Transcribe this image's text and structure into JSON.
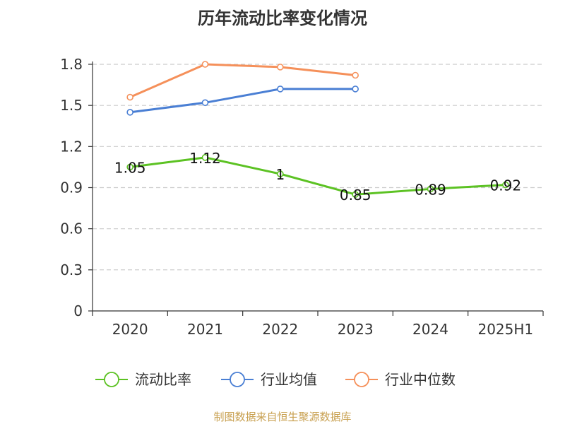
{
  "title": "历年流动比率变化情况",
  "source": "制图数据来自恒生聚源数据库",
  "colors": {
    "axis": "#333333",
    "grid": "#cccccc",
    "source": "#c8a050"
  },
  "chart_data": {
    "type": "line",
    "title": "历年流动比率变化情况",
    "xlabel": "",
    "ylabel": "",
    "categories": [
      "2020",
      "2021",
      "2022",
      "2023",
      "2024",
      "2025H1"
    ],
    "ylim": [
      0,
      1.8
    ],
    "yticks": [
      "0",
      "0.3",
      "0.6",
      "0.9",
      "1.2",
      "1.5",
      "1.8"
    ],
    "grid": true,
    "legend_position": "bottom",
    "series": [
      {
        "name": "流动比率",
        "color": "#5cc223",
        "values": [
          1.05,
          1.12,
          1.0,
          0.85,
          0.89,
          0.92
        ],
        "labels": [
          "1.05",
          "1.12",
          "1",
          "0.85",
          "0.89",
          "0.92"
        ]
      },
      {
        "name": "行业均值",
        "color": "#4a7fd4",
        "values": [
          1.45,
          1.52,
          1.62,
          1.62,
          null,
          null
        ]
      },
      {
        "name": "行业中位数",
        "color": "#f5905a",
        "values": [
          1.56,
          1.8,
          1.78,
          1.72,
          null,
          null
        ]
      }
    ]
  }
}
